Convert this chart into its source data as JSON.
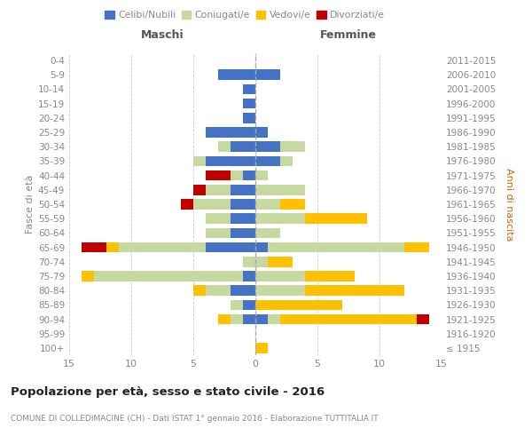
{
  "age_groups": [
    "100+",
    "95-99",
    "90-94",
    "85-89",
    "80-84",
    "75-79",
    "70-74",
    "65-69",
    "60-64",
    "55-59",
    "50-54",
    "45-49",
    "40-44",
    "35-39",
    "30-34",
    "25-29",
    "20-24",
    "15-19",
    "10-14",
    "5-9",
    "0-4"
  ],
  "birth_years": [
    "≤ 1915",
    "1916-1920",
    "1921-1925",
    "1926-1930",
    "1931-1935",
    "1936-1940",
    "1941-1945",
    "1946-1950",
    "1951-1955",
    "1956-1960",
    "1961-1965",
    "1966-1970",
    "1971-1975",
    "1976-1980",
    "1981-1985",
    "1986-1990",
    "1991-1995",
    "1996-2000",
    "2001-2005",
    "2006-2010",
    "2011-2015"
  ],
  "colors": {
    "celibi": "#4472c4",
    "coniugati": "#c5d9a0",
    "vedovi": "#ffc000",
    "divorziati": "#c00000"
  },
  "maschi": {
    "celibi": [
      0,
      0,
      1,
      1,
      2,
      1,
      0,
      4,
      2,
      2,
      2,
      2,
      1,
      4,
      2,
      4,
      1,
      1,
      1,
      3,
      0
    ],
    "coniugati": [
      0,
      0,
      1,
      1,
      2,
      12,
      1,
      7,
      2,
      2,
      3,
      2,
      1,
      1,
      1,
      0,
      0,
      0,
      0,
      0,
      0
    ],
    "vedovi": [
      0,
      0,
      1,
      0,
      1,
      1,
      0,
      1,
      0,
      0,
      0,
      0,
      0,
      0,
      0,
      0,
      0,
      0,
      0,
      0,
      0
    ],
    "divorziati": [
      0,
      0,
      0,
      0,
      0,
      0,
      0,
      2,
      0,
      0,
      1,
      1,
      2,
      0,
      0,
      0,
      0,
      0,
      0,
      0,
      0
    ]
  },
  "femmine": {
    "celibi": [
      0,
      0,
      1,
      0,
      0,
      0,
      0,
      1,
      0,
      0,
      0,
      0,
      0,
      2,
      2,
      1,
      0,
      0,
      0,
      2,
      0
    ],
    "coniugati": [
      0,
      0,
      1,
      0,
      4,
      4,
      1,
      11,
      2,
      4,
      2,
      4,
      1,
      1,
      2,
      0,
      0,
      0,
      0,
      0,
      0
    ],
    "vedovi": [
      1,
      0,
      11,
      7,
      8,
      4,
      2,
      2,
      0,
      5,
      2,
      0,
      0,
      0,
      0,
      0,
      0,
      0,
      0,
      0,
      0
    ],
    "divorziati": [
      0,
      0,
      1,
      0,
      0,
      0,
      0,
      0,
      0,
      0,
      0,
      0,
      0,
      0,
      0,
      0,
      0,
      0,
      0,
      0,
      0
    ]
  },
  "xlim": 15,
  "title": "Popolazione per età, sesso e stato civile - 2016",
  "subtitle": "COMUNE DI COLLEDIMACINE (CH) - Dati ISTAT 1° gennaio 2016 - Elaborazione TUTTITALIA.IT",
  "ylabel_left": "Fasce di età",
  "ylabel_right": "Anni di nascita",
  "label_maschi": "Maschi",
  "label_femmine": "Femmine",
  "legend_labels": [
    "Celibi/Nubili",
    "Coniugati/e",
    "Vedovi/e",
    "Divorziati/e"
  ],
  "text_color": "#888888",
  "title_color": "#222222"
}
